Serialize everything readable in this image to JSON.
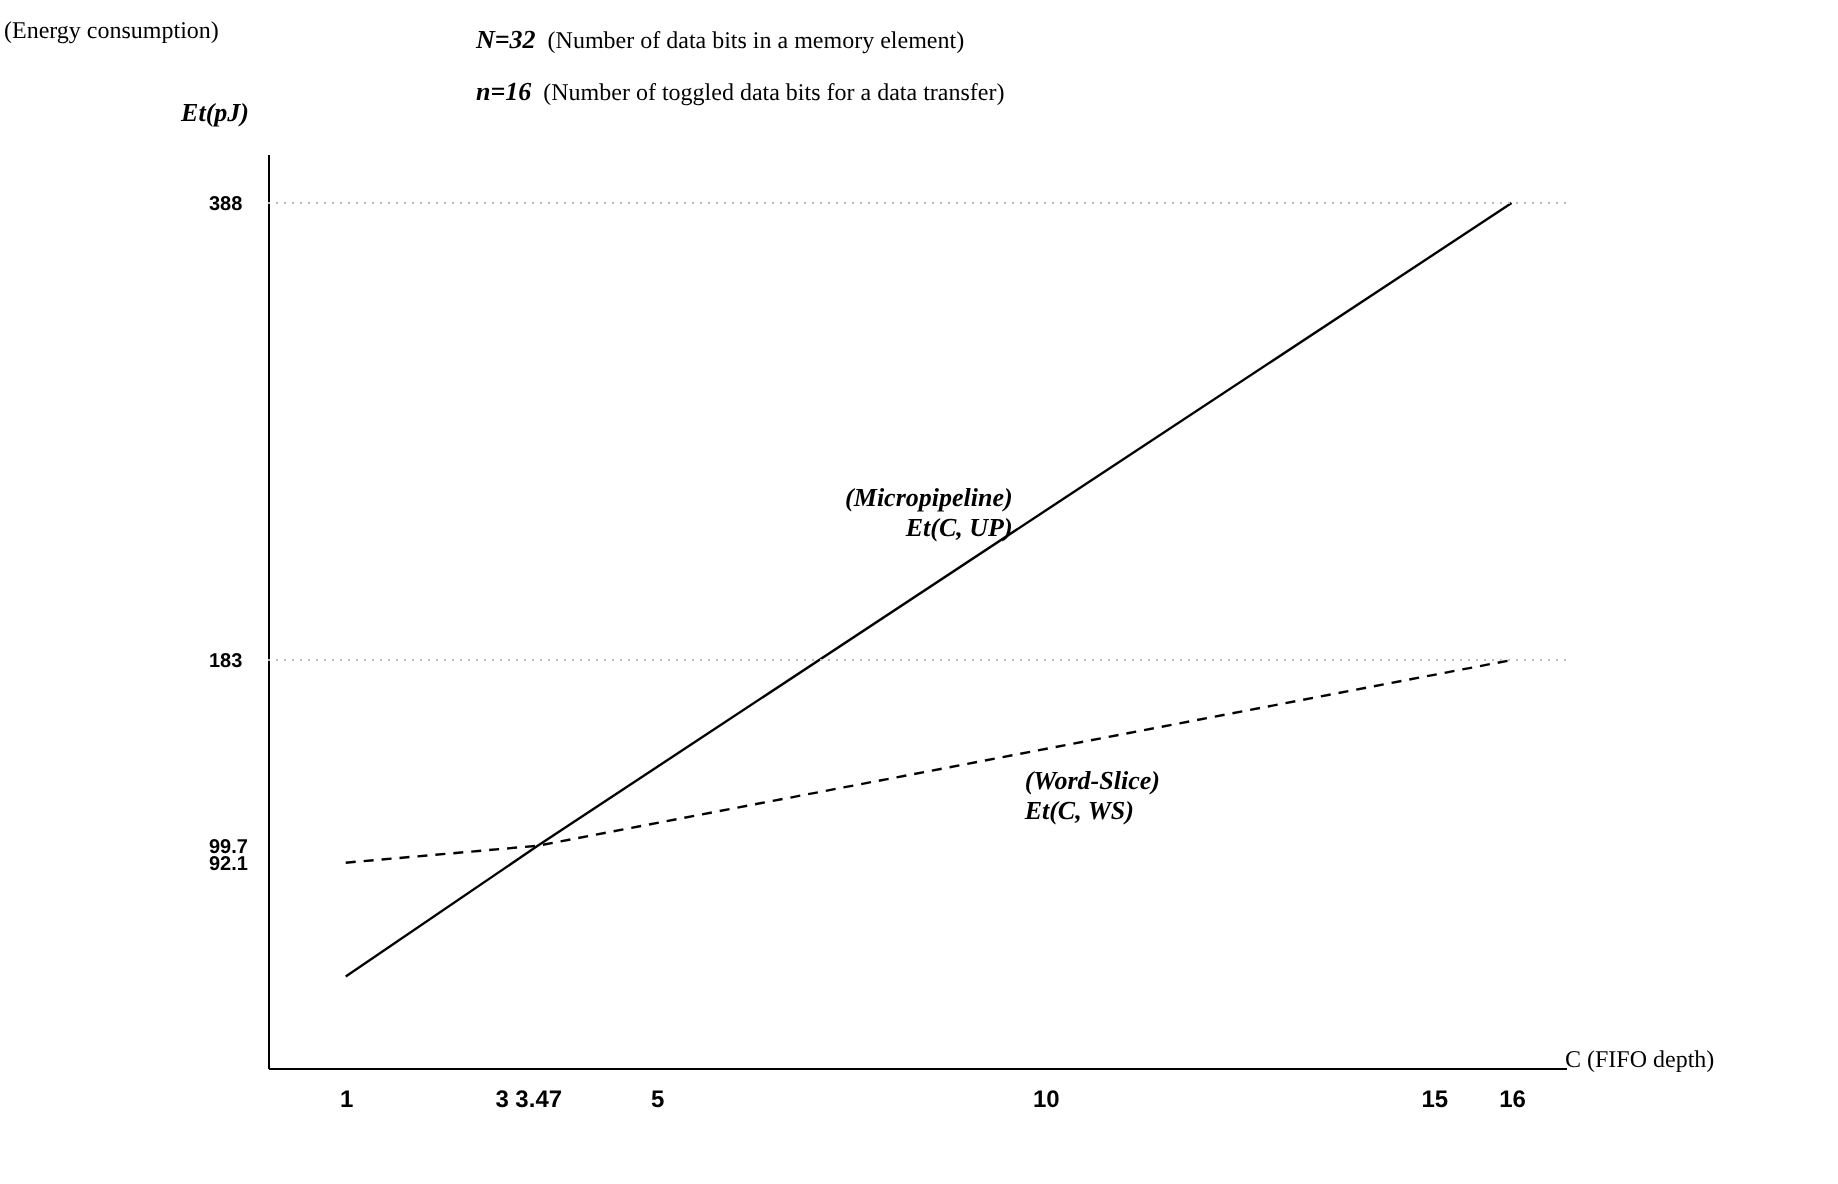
{
  "chart_data": {
    "type": "line",
    "xlabel": "C (FIFO depth)",
    "ylabel": "Et(pJ)",
    "annotations": [
      "(Energy consumption)",
      "N=32  (Number of data bits in a memory element)",
      "n=16  (Number of toggled data bits for a data transfer)"
    ],
    "x": [
      1,
      3.47,
      16
    ],
    "series": [
      {
        "name": "(Micropipeline)\nEt(C, UP)",
        "color": "#000000",
        "line_style": "solid",
        "values": [
          41,
          99.7,
          388
        ]
      },
      {
        "name": "(Word-Slice)\nEt(C, WS)",
        "color": "#000000",
        "line_style": "dashed",
        "values": [
          92.1,
          99.7,
          183
        ]
      }
    ],
    "xlim": [
      0,
      16.7
    ],
    "ylim": [
      0,
      410
    ],
    "xticks": [
      1,
      3,
      3.47,
      5,
      10,
      15,
      16
    ],
    "yticks": [
      92.1,
      99.7,
      183,
      388
    ],
    "ref_lines": [
      {
        "axis": "y",
        "value": 388,
        "line_style": "dotted",
        "color": "#bbbbbb"
      },
      {
        "axis": "y",
        "value": 183,
        "line_style": "dotted",
        "color": "#bbbbbb"
      }
    ],
    "grid": false
  }
}
